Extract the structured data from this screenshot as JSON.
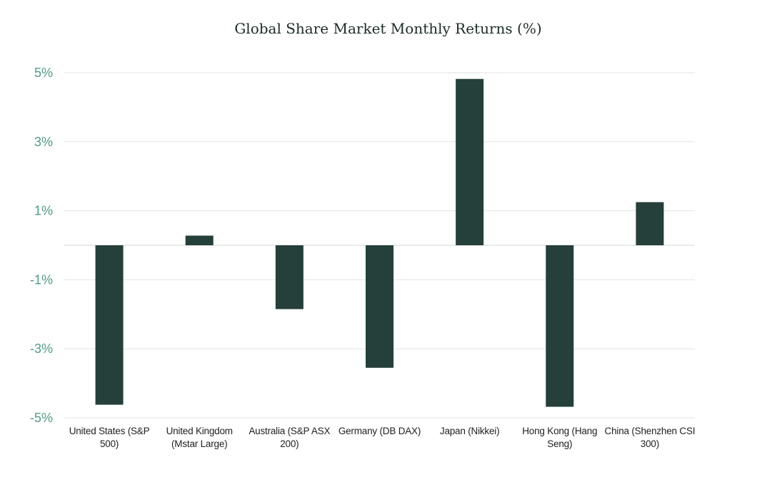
{
  "chart_data": {
    "type": "bar",
    "title": "Global Share Market Monthly Returns (%)",
    "xlabel": "",
    "ylabel": "",
    "categories": [
      "United States (S&P 500)",
      "United Kingdom (Mstar Large)",
      "Australia (S&P ASX 200)",
      "Germany (DB DAX)",
      "Japan (Nikkei)",
      "Hong Kong (Hang Seng)",
      "China (Shenzhen CSI 300)"
    ],
    "category_label_lines": [
      [
        "United States (S&P",
        "500)"
      ],
      [
        "United Kingdom",
        "(Mstar Large)"
      ],
      [
        "Australia (S&P ASX",
        "200)"
      ],
      [
        "Germany (DB DAX)"
      ],
      [
        "Japan (Nikkei)"
      ],
      [
        "Hong Kong (Hang",
        "Seng)"
      ],
      [
        "China (Shenzhen CSI",
        "300)"
      ]
    ],
    "values": [
      -4.62,
      0.28,
      -1.85,
      -3.55,
      4.82,
      -4.68,
      1.25
    ],
    "ylim": [
      -5,
      5
    ],
    "yticks": [
      5,
      3,
      1,
      -1,
      -3,
      -5
    ],
    "ytick_labels": [
      "5%",
      "3%",
      "1%",
      "-1%",
      "-3%",
      "-5%"
    ],
    "grid": true,
    "legend": "none",
    "colors": {
      "bar": "#253f3a",
      "ytick_text": "#4f9a8a",
      "grid": "#e3e3e3",
      "zero_line": "#d6d6d6"
    }
  }
}
